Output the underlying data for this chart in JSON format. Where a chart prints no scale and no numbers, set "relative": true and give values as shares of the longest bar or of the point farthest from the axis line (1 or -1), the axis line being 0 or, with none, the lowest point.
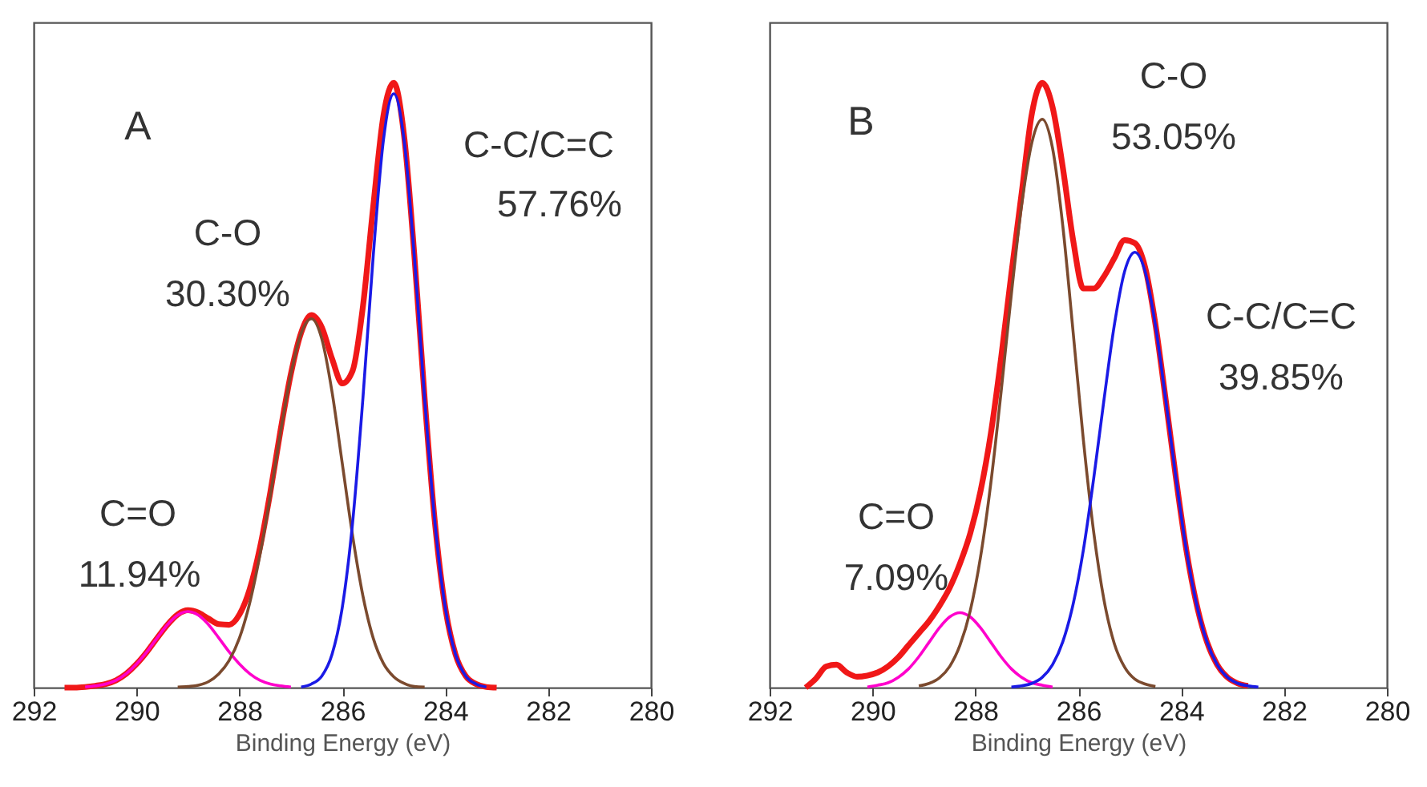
{
  "chart_data": [
    {
      "type": "line",
      "relative": true,
      "xlabel": "Binding Energy (eV)",
      "xlim": [
        292,
        280
      ],
      "xticks": [
        292,
        290,
        288,
        286,
        284,
        282,
        280
      ],
      "annotations": [
        "A",
        "C-C/C=C",
        "57.76%",
        "C-O",
        "30.30%",
        "C=O",
        "11.94%"
      ],
      "series": [
        {
          "color": "#ff00cc",
          "x": [
            291.0,
            290.8,
            290.6,
            290.4,
            290.2,
            290.0,
            289.8,
            289.6,
            289.4,
            289.2,
            289.0,
            288.8,
            288.6,
            288.4,
            288.2,
            288.0,
            287.8,
            287.6,
            287.4,
            287.2,
            287.0
          ],
          "values": [
            0.001,
            0.003,
            0.006,
            0.012,
            0.023,
            0.039,
            0.059,
            0.082,
            0.104,
            0.12,
            0.126,
            0.12,
            0.104,
            0.082,
            0.059,
            0.039,
            0.023,
            0.012,
            0.006,
            0.003,
            0.001
          ]
        },
        {
          "color": "#7b4a2e",
          "x": [
            289.2,
            289.0,
            288.8,
            288.6,
            288.4,
            288.2,
            288.0,
            287.8,
            287.6,
            287.4,
            287.2,
            287.0,
            286.8,
            286.6,
            286.4,
            286.2,
            286.0,
            285.8,
            285.6,
            285.4,
            285.2,
            285.0,
            284.8,
            284.6,
            284.4
          ],
          "values": [
            0.001,
            0.002,
            0.004,
            0.01,
            0.023,
            0.045,
            0.082,
            0.14,
            0.22,
            0.317,
            0.423,
            0.518,
            0.586,
            0.61,
            0.577,
            0.489,
            0.37,
            0.251,
            0.152,
            0.082,
            0.04,
            0.018,
            0.007,
            0.002,
            0.001
          ]
        },
        {
          "color": "#1a1ae6",
          "x": [
            286.8,
            286.6,
            286.4,
            286.2,
            286.0,
            285.8,
            285.6,
            285.4,
            285.2,
            285.0,
            284.8,
            284.6,
            284.4,
            284.2,
            284.0,
            283.8,
            283.6,
            283.4,
            283.2
          ],
          "values": [
            0.001,
            0.006,
            0.019,
            0.055,
            0.133,
            0.273,
            0.478,
            0.713,
            0.906,
            0.982,
            0.906,
            0.713,
            0.478,
            0.273,
            0.133,
            0.055,
            0.019,
            0.006,
            0.001
          ]
        },
        {
          "color": "#f01818",
          "x": [
            291.4,
            291.2,
            291.0,
            290.8,
            290.6,
            290.4,
            290.2,
            290.0,
            289.8,
            289.6,
            289.4,
            289.2,
            289.0,
            288.8,
            288.6,
            288.4,
            288.2,
            288.0,
            287.8,
            287.6,
            287.4,
            287.2,
            287.0,
            286.8,
            286.6,
            286.4,
            286.2,
            286.0,
            285.8,
            285.6,
            285.4,
            285.2,
            285.0,
            284.8,
            284.6,
            284.4,
            284.2,
            284.0,
            283.8,
            283.6,
            283.4,
            283.2,
            283.0
          ],
          "values": [
            0.0,
            0.0,
            0.001,
            0.003,
            0.006,
            0.012,
            0.023,
            0.039,
            0.059,
            0.082,
            0.104,
            0.121,
            0.128,
            0.124,
            0.114,
            0.105,
            0.104,
            0.121,
            0.163,
            0.232,
            0.323,
            0.426,
            0.519,
            0.587,
            0.616,
            0.596,
            0.544,
            0.503,
            0.524,
            0.63,
            0.795,
            0.946,
            1.0,
            0.913,
            0.715,
            0.479,
            0.273,
            0.133,
            0.055,
            0.019,
            0.006,
            0.001,
            0.0
          ]
        }
      ]
    },
    {
      "type": "line",
      "relative": true,
      "xlabel": "Binding Energy (eV)",
      "xlim": [
        292,
        280
      ],
      "xticks": [
        292,
        290,
        288,
        286,
        284,
        282,
        280
      ],
      "annotations": [
        "B",
        "C-O",
        "53.05%",
        "C-C/C=C",
        "39.85%",
        "C=O",
        "7.09%"
      ],
      "series": [
        {
          "color": "#ff00cc",
          "x": [
            290.1,
            289.9,
            289.7,
            289.5,
            289.3,
            289.1,
            288.9,
            288.7,
            288.5,
            288.3,
            288.1,
            287.9,
            287.7,
            287.5,
            287.3,
            287.1,
            286.9,
            286.7,
            286.5
          ],
          "values": [
            0.001,
            0.004,
            0.008,
            0.017,
            0.031,
            0.051,
            0.075,
            0.099,
            0.117,
            0.124,
            0.117,
            0.099,
            0.075,
            0.051,
            0.031,
            0.017,
            0.008,
            0.004,
            0.001
          ]
        },
        {
          "color": "#7b4a2e",
          "x": [
            289.1,
            288.9,
            288.7,
            288.5,
            288.3,
            288.1,
            287.9,
            287.7,
            287.5,
            287.3,
            287.1,
            286.9,
            286.7,
            286.5,
            286.3,
            286.1,
            285.9,
            285.7,
            285.5,
            285.3,
            285.1,
            284.9,
            284.7,
            284.5
          ],
          "values": [
            0.003,
            0.007,
            0.016,
            0.035,
            0.07,
            0.127,
            0.216,
            0.338,
            0.489,
            0.651,
            0.798,
            0.902,
            0.94,
            0.892,
            0.763,
            0.588,
            0.409,
            0.257,
            0.145,
            0.073,
            0.034,
            0.014,
            0.006,
            0.002
          ]
        },
        {
          "color": "#1a1ae6",
          "x": [
            287.3,
            287.1,
            286.9,
            286.7,
            286.5,
            286.3,
            286.1,
            285.9,
            285.7,
            285.5,
            285.3,
            285.1,
            284.9,
            284.7,
            284.5,
            284.3,
            284.1,
            283.9,
            283.7,
            283.5,
            283.3,
            283.1,
            282.9,
            282.7,
            282.5
          ],
          "values": [
            0.001,
            0.003,
            0.007,
            0.017,
            0.038,
            0.076,
            0.138,
            0.228,
            0.346,
            0.476,
            0.599,
            0.688,
            0.72,
            0.688,
            0.599,
            0.476,
            0.346,
            0.228,
            0.138,
            0.076,
            0.038,
            0.017,
            0.007,
            0.003,
            0.001
          ]
        },
        {
          "color": "#f01818",
          "x": [
            291.3,
            291.1,
            290.9,
            290.7,
            290.5,
            290.3,
            290.1,
            289.9,
            289.7,
            289.5,
            289.3,
            289.1,
            288.9,
            288.7,
            288.5,
            288.3,
            288.1,
            287.9,
            287.7,
            287.5,
            287.3,
            287.1,
            286.9,
            286.7,
            286.5,
            286.3,
            286.1,
            285.9,
            285.7,
            285.5,
            285.3,
            285.1,
            284.9,
            284.7,
            284.5,
            284.3,
            284.1,
            283.9,
            283.7,
            283.5,
            283.3,
            283.1,
            282.9,
            282.7
          ],
          "values": [
            0.0,
            0.015,
            0.035,
            0.038,
            0.025,
            0.018,
            0.02,
            0.025,
            0.035,
            0.05,
            0.07,
            0.09,
            0.11,
            0.135,
            0.165,
            0.205,
            0.255,
            0.325,
            0.42,
            0.545,
            0.685,
            0.818,
            0.95,
            1.0,
            0.96,
            0.86,
            0.74,
            0.66,
            0.66,
            0.68,
            0.71,
            0.74,
            0.735,
            0.695,
            0.601,
            0.476,
            0.346,
            0.228,
            0.138,
            0.076,
            0.038,
            0.017,
            0.007,
            0.003
          ]
        }
      ]
    }
  ]
}
